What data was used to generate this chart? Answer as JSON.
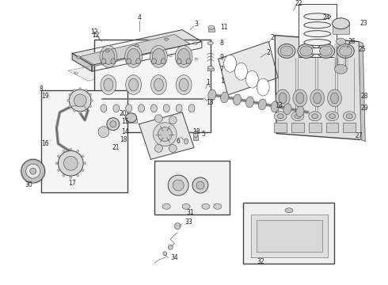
{
  "bg_color": "#ffffff",
  "fig_width": 4.9,
  "fig_height": 3.6,
  "dpi": 100,
  "lc": "#888888",
  "lc_dark": "#444444",
  "lc_med": "#666666",
  "fill_light": "#e8e8e8",
  "fill_med": "#d0d0d0",
  "fill_dark": "#b0b0b0",
  "label_size": 5.5,
  "label_color": "#222222"
}
